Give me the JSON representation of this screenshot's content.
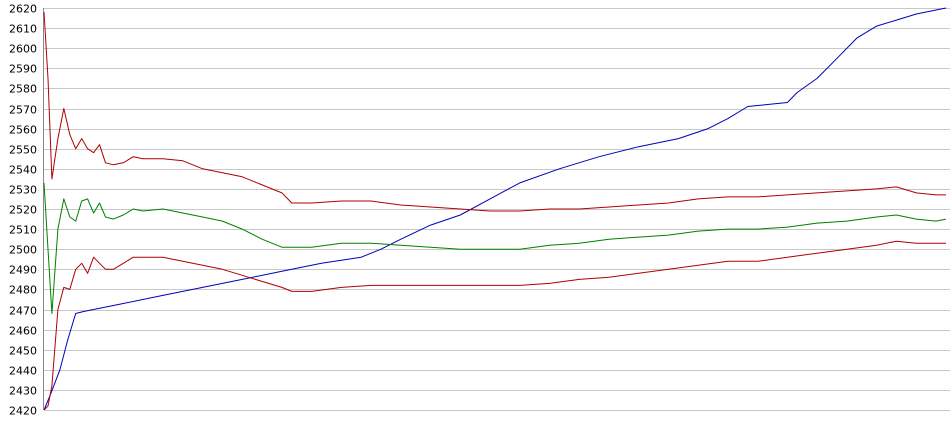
{
  "chart_data": {
    "type": "line",
    "ylim": [
      2420,
      2620
    ],
    "yticks": [
      "2620",
      "2610",
      "2600",
      "2590",
      "2580",
      "2570",
      "2560",
      "2550",
      "2540",
      "2530",
      "2520",
      "2510",
      "2500",
      "2490",
      "2480",
      "2470",
      "2460",
      "2450",
      "2440",
      "2430",
      "2420"
    ],
    "grid": true,
    "x_count": 300,
    "series": [
      {
        "color": "#0000bb",
        "role": "trend",
        "points": [
          [
            0,
            2420
          ],
          [
            3,
            2427
          ],
          [
            8,
            2440
          ],
          [
            12,
            2455
          ],
          [
            16,
            2468
          ],
          [
            20,
            2469
          ],
          [
            40,
            2473
          ],
          [
            60,
            2477
          ],
          [
            80,
            2481
          ],
          [
            100,
            2485
          ],
          [
            120,
            2489
          ],
          [
            140,
            2493
          ],
          [
            160,
            2496
          ],
          [
            170,
            2500
          ],
          [
            180,
            2505
          ],
          [
            195,
            2512
          ],
          [
            210,
            2517
          ],
          [
            225,
            2525
          ],
          [
            240,
            2533
          ],
          [
            260,
            2540
          ],
          [
            280,
            2546
          ],
          [
            300,
            2551
          ],
          [
            320,
            2555
          ],
          [
            335,
            2560
          ],
          [
            345,
            2565
          ],
          [
            355,
            2571
          ],
          [
            365,
            2572
          ],
          [
            375,
            2573
          ],
          [
            380,
            2578
          ],
          [
            390,
            2585
          ],
          [
            400,
            2595
          ],
          [
            410,
            2605
          ],
          [
            420,
            2611
          ],
          [
            430,
            2614
          ],
          [
            440,
            2617
          ],
          [
            450,
            2619
          ],
          [
            455,
            2620
          ]
        ]
      },
      {
        "color": "#b00000",
        "role": "upper-band",
        "points": [
          [
            0,
            2618
          ],
          [
            2,
            2585
          ],
          [
            4,
            2535
          ],
          [
            7,
            2555
          ],
          [
            10,
            2570
          ],
          [
            13,
            2557
          ],
          [
            16,
            2550
          ],
          [
            19,
            2555
          ],
          [
            22,
            2550
          ],
          [
            25,
            2548
          ],
          [
            28,
            2552
          ],
          [
            31,
            2543
          ],
          [
            35,
            2542
          ],
          [
            40,
            2543
          ],
          [
            45,
            2546
          ],
          [
            50,
            2545
          ],
          [
            60,
            2545
          ],
          [
            70,
            2544
          ],
          [
            80,
            2540
          ],
          [
            90,
            2538
          ],
          [
            100,
            2536
          ],
          [
            110,
            2532
          ],
          [
            120,
            2528
          ],
          [
            125,
            2523
          ],
          [
            135,
            2523
          ],
          [
            150,
            2524
          ],
          [
            165,
            2524
          ],
          [
            180,
            2522
          ],
          [
            195,
            2521
          ],
          [
            210,
            2520
          ],
          [
            225,
            2519
          ],
          [
            240,
            2519
          ],
          [
            255,
            2520
          ],
          [
            270,
            2520
          ],
          [
            285,
            2521
          ],
          [
            300,
            2522
          ],
          [
            315,
            2523
          ],
          [
            330,
            2525
          ],
          [
            345,
            2526
          ],
          [
            360,
            2526
          ],
          [
            375,
            2527
          ],
          [
            390,
            2528
          ],
          [
            405,
            2529
          ],
          [
            420,
            2530
          ],
          [
            430,
            2531
          ],
          [
            440,
            2528
          ],
          [
            450,
            2527
          ],
          [
            455,
            2527
          ]
        ]
      },
      {
        "color": "#008000",
        "role": "middle",
        "points": [
          [
            0,
            2533
          ],
          [
            2,
            2500
          ],
          [
            4,
            2468
          ],
          [
            7,
            2510
          ],
          [
            10,
            2525
          ],
          [
            13,
            2516
          ],
          [
            16,
            2514
          ],
          [
            19,
            2524
          ],
          [
            22,
            2525
          ],
          [
            25,
            2518
          ],
          [
            28,
            2523
          ],
          [
            31,
            2516
          ],
          [
            35,
            2515
          ],
          [
            40,
            2517
          ],
          [
            45,
            2520
          ],
          [
            50,
            2519
          ],
          [
            60,
            2520
          ],
          [
            70,
            2518
          ],
          [
            80,
            2516
          ],
          [
            90,
            2514
          ],
          [
            100,
            2510
          ],
          [
            110,
            2505
          ],
          [
            120,
            2501
          ],
          [
            135,
            2501
          ],
          [
            150,
            2503
          ],
          [
            165,
            2503
          ],
          [
            180,
            2502
          ],
          [
            195,
            2501
          ],
          [
            210,
            2500
          ],
          [
            225,
            2500
          ],
          [
            240,
            2500
          ],
          [
            255,
            2502
          ],
          [
            270,
            2503
          ],
          [
            285,
            2505
          ],
          [
            300,
            2506
          ],
          [
            315,
            2507
          ],
          [
            330,
            2509
          ],
          [
            345,
            2510
          ],
          [
            360,
            2510
          ],
          [
            375,
            2511
          ],
          [
            390,
            2513
          ],
          [
            405,
            2514
          ],
          [
            420,
            2516
          ],
          [
            430,
            2517
          ],
          [
            440,
            2515
          ],
          [
            450,
            2514
          ],
          [
            455,
            2515
          ]
        ]
      },
      {
        "color": "#b00000",
        "role": "lower-band",
        "points": [
          [
            0,
            2420
          ],
          [
            2,
            2422
          ],
          [
            4,
            2432
          ],
          [
            7,
            2470
          ],
          [
            10,
            2481
          ],
          [
            13,
            2480
          ],
          [
            16,
            2490
          ],
          [
            19,
            2493
          ],
          [
            22,
            2488
          ],
          [
            25,
            2496
          ],
          [
            28,
            2493
          ],
          [
            31,
            2490
          ],
          [
            35,
            2490
          ],
          [
            40,
            2493
          ],
          [
            45,
            2496
          ],
          [
            50,
            2496
          ],
          [
            60,
            2496
          ],
          [
            70,
            2494
          ],
          [
            80,
            2492
          ],
          [
            90,
            2490
          ],
          [
            100,
            2487
          ],
          [
            110,
            2484
          ],
          [
            120,
            2481
          ],
          [
            125,
            2479
          ],
          [
            135,
            2479
          ],
          [
            150,
            2481
          ],
          [
            165,
            2482
          ],
          [
            180,
            2482
          ],
          [
            195,
            2482
          ],
          [
            210,
            2482
          ],
          [
            225,
            2482
          ],
          [
            240,
            2482
          ],
          [
            255,
            2483
          ],
          [
            270,
            2485
          ],
          [
            285,
            2486
          ],
          [
            300,
            2488
          ],
          [
            315,
            2490
          ],
          [
            330,
            2492
          ],
          [
            345,
            2494
          ],
          [
            360,
            2494
          ],
          [
            375,
            2496
          ],
          [
            390,
            2498
          ],
          [
            405,
            2500
          ],
          [
            420,
            2502
          ],
          [
            430,
            2504
          ],
          [
            440,
            2503
          ],
          [
            450,
            2503
          ],
          [
            455,
            2503
          ]
        ]
      }
    ]
  }
}
